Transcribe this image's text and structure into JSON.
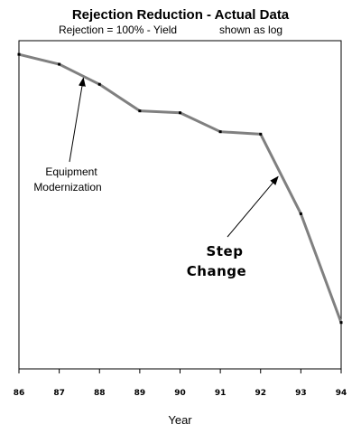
{
  "chart_data": {
    "type": "line",
    "title": "Rejection Reduction - Actual Data",
    "subtitle_left": "Rejection = 100% - Yield",
    "subtitle_right": "shown as log",
    "xlabel": "Year",
    "ylabel": "",
    "y_scale": "log",
    "grid": false,
    "legend": "none",
    "line_color": "#808080",
    "x_tick_labels": [
      "86",
      "87",
      "88",
      "89",
      "90",
      "91",
      "92",
      "93",
      "94"
    ],
    "series": [
      {
        "x": [
          "86",
          "87",
          "88",
          "89",
          "90",
          "91",
          "92",
          "93",
          "94"
        ],
        "values": [
          0.89,
          0.79,
          0.62,
          0.45,
          0.44,
          0.35,
          0.34,
          0.13,
          0.035
        ]
      }
    ],
    "annotations": [
      {
        "lines": [
          "Equipment",
          "Modernization"
        ],
        "x_year": "87.6",
        "style": "normal"
      },
      {
        "lines": [
          "Step",
          "Change"
        ],
        "x_year": "92.5",
        "style": "bold"
      }
    ]
  }
}
